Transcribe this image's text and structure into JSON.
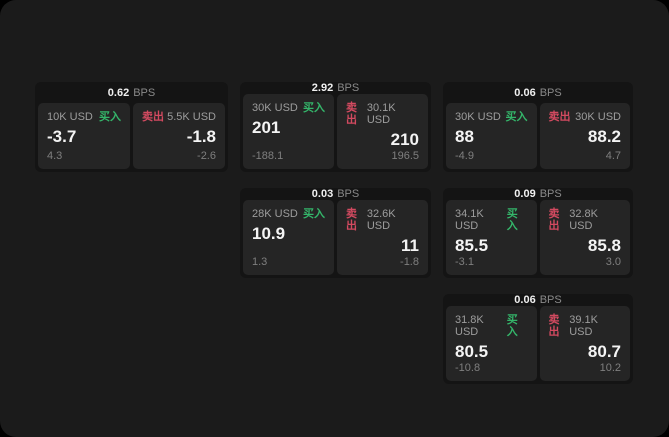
{
  "labels": {
    "bps_unit": "BPS",
    "buy": "买入",
    "sell": "卖出"
  },
  "colors": {
    "surface_bg": "#1b1b1b",
    "card_bg": "#141414",
    "panel_bg": "#252525",
    "buy_green": "#34b56a",
    "sell_red": "#d34a60"
  },
  "cards": [
    {
      "bps": "0.62",
      "buy": {
        "amount": "10K USD",
        "price": "-3.7",
        "change": "4.3"
      },
      "sell": {
        "amount": "5.5K USD",
        "price": "-1.8",
        "change": "-2.6"
      }
    },
    {
      "bps": "2.92",
      "buy": {
        "amount": "30K USD",
        "price": "201",
        "change": "-188.1"
      },
      "sell": {
        "amount": "30.1K USD",
        "price": "210",
        "change": "196.5"
      }
    },
    {
      "bps": "0.06",
      "buy": {
        "amount": "30K USD",
        "price": "88",
        "change": "-4.9"
      },
      "sell": {
        "amount": "30K USD",
        "price": "88.2",
        "change": "4.7"
      }
    },
    {
      "bps": "0.03",
      "buy": {
        "amount": "28K USD",
        "price": "10.9",
        "change": "1.3"
      },
      "sell": {
        "amount": "32.6K USD",
        "price": "11",
        "change": "-1.8"
      }
    },
    {
      "bps": "0.09",
      "buy": {
        "amount": "34.1K USD",
        "price": "85.5",
        "change": "-3.1"
      },
      "sell": {
        "amount": "32.8K USD",
        "price": "85.8",
        "change": "3.0"
      }
    },
    {
      "bps": "0.06",
      "buy": {
        "amount": "31.8K USD",
        "price": "80.5",
        "change": "-10.8"
      },
      "sell": {
        "amount": "39.1K USD",
        "price": "80.7",
        "change": "10.2"
      }
    }
  ]
}
